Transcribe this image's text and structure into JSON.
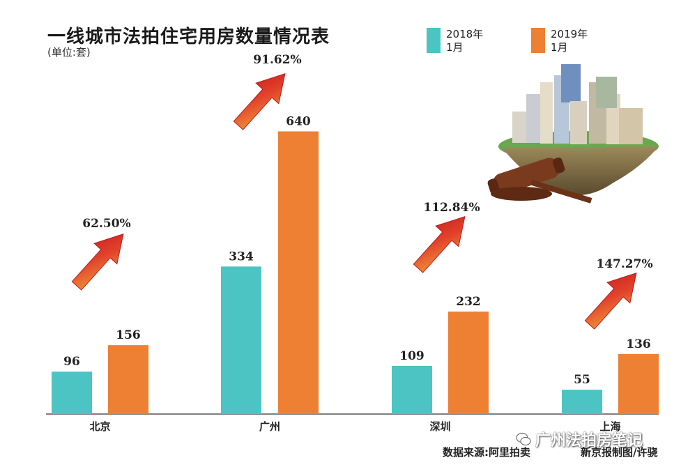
{
  "header": {
    "title": "一线城市法拍住宅用房数量情况表",
    "unit": "(单位:套)"
  },
  "legend": [
    {
      "label": "2018年\n1月",
      "color": "#4cc4c4"
    },
    {
      "label": "2019年\n1月",
      "color": "#ee8033"
    }
  ],
  "footer": {
    "source": "数据来源:阿里拍卖",
    "credit": "新京报制图/许骁",
    "watermark": "广州法拍房笔记"
  },
  "chart_data": {
    "type": "bar",
    "categories": [
      "北京",
      "广州",
      "深圳",
      "上海"
    ],
    "series": [
      {
        "name": "2018年1月",
        "values": [
          96,
          334,
          109,
          55
        ],
        "color": "#4cc4c4"
      },
      {
        "name": "2019年1月",
        "values": [
          156,
          640,
          232,
          136
        ],
        "color": "#ee8033"
      }
    ],
    "growth_labels": [
      "62.50%",
      "91.62%",
      "112.84%",
      "147.27%"
    ],
    "ylim": [
      0,
      720
    ],
    "title": "一线城市法拍住宅用房数量情况表",
    "xlabel": "",
    "ylabel": "",
    "grid": false
  }
}
